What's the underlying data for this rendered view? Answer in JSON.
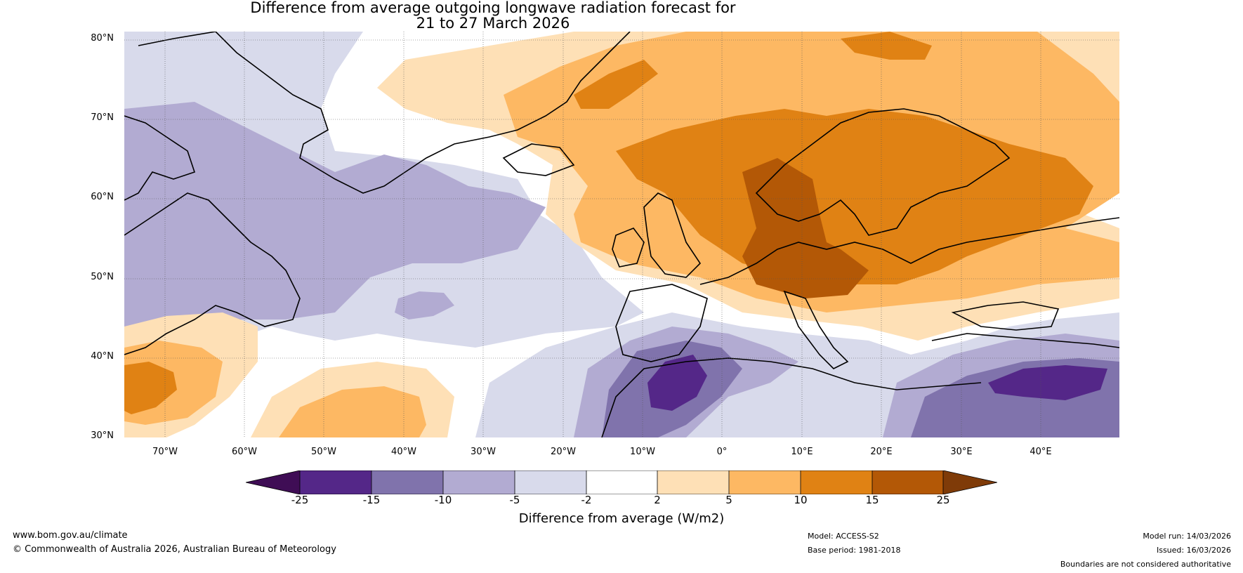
{
  "title": {
    "line1": "Difference from average outgoing longwave radiation forecast for",
    "line2": "21 to 27 March 2026"
  },
  "map": {
    "lat_labels": [
      "80°N",
      "70°N",
      "60°N",
      "50°N",
      "40°N",
      "30°N"
    ],
    "lon_labels": [
      "70°W",
      "60°W",
      "50°W",
      "40°W",
      "30°W",
      "20°W",
      "10°W",
      "0°",
      "10°E",
      "20°E",
      "30°E",
      "40°E"
    ],
    "extent": {
      "lon_min": -75,
      "lon_max": 50,
      "lat_min": 30,
      "lat_max": 81
    }
  },
  "legend": {
    "title": "Difference from average (W/m2)",
    "ticks": [
      "-25",
      "-15",
      "-10",
      "-5",
      "-2",
      "2",
      "5",
      "10",
      "15",
      "25"
    ],
    "colors": {
      "lt_-25": "#3f0d55",
      "-25_-15": "#542788",
      "-15_-10": "#8073ac",
      "-10_-5": "#b2abd2",
      "-5_-2": "#d8daeb",
      "-2_2": "#ffffff",
      "2_5": "#fee0b6",
      "5_10": "#fdb863",
      "10_15": "#e08214",
      "15_25": "#b35806",
      "gt_25": "#7f3b08"
    }
  },
  "footer": {
    "website": "www.bom.gov.au/climate",
    "copyright": "© Commonwealth of Australia 2026, Australian Bureau of Meteorology",
    "model": "Model: ACCESS-S2",
    "base_period": "Base period: 1981-2018",
    "model_run": "Model run: 14/03/2026",
    "issued": "Issued: 16/03/2026",
    "disclaimer": "Boundaries are not considered authoritative"
  }
}
